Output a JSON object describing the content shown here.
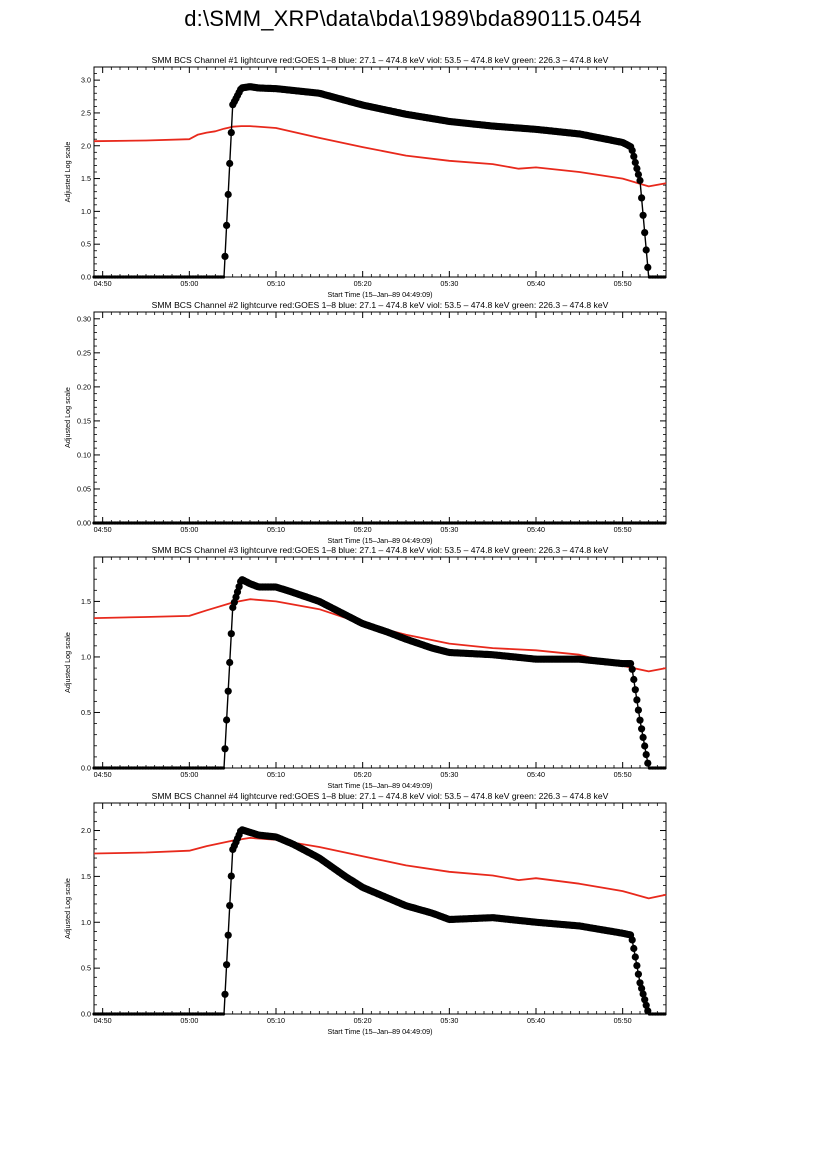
{
  "page": {
    "title": "d:\\SMM_XRP\\data\\bda\\1989\\bda890115.0454"
  },
  "colors": {
    "goes": "#e8291c",
    "bcs": "#000000",
    "axis": "#000000"
  },
  "chart_data": [
    {
      "type": "line",
      "title": "SMM BCS Channel #1 lightcurve  red:GOES 1–8  blue: 27.1 – 474.8 keV  viol: 53.5 – 474.8 keV  green: 226.3 – 474.8 keV",
      "xlabel": "Start Time (15–Jan–89 04:49:09)",
      "ylabel": "Adjusted Log scale",
      "xlim": [
        "04:49",
        "05:55"
      ],
      "ylim": [
        0,
        3.2
      ],
      "xticks": [
        "04:50",
        "05:00",
        "05:10",
        "05:20",
        "05:30",
        "05:40",
        "05:50"
      ],
      "yticks": [
        "0.0",
        "0.5",
        "1.0",
        "1.5",
        "2.0",
        "2.5",
        "3.0"
      ],
      "grid": false,
      "series": [
        {
          "color": "#e8291c",
          "x": [
            "04:49",
            "04:55",
            "05:00",
            "05:01",
            "05:02",
            "05:03",
            "05:04",
            "05:05",
            "05:06",
            "05:07",
            "05:10",
            "05:15",
            "05:20",
            "05:25",
            "05:30",
            "05:35",
            "05:38",
            "05:40",
            "05:45",
            "05:50",
            "05:53",
            "05:55"
          ],
          "y": [
            2.07,
            2.08,
            2.1,
            2.17,
            2.2,
            2.22,
            2.26,
            2.29,
            2.3,
            2.3,
            2.27,
            2.12,
            1.98,
            1.85,
            1.77,
            1.72,
            1.65,
            1.67,
            1.6,
            1.5,
            1.38,
            1.43
          ]
        },
        {
          "color": "#000000",
          "markers": true,
          "x": [
            "04:49",
            "04:55",
            "05:00",
            "05:04",
            "05:05",
            "05:06",
            "05:07",
            "05:08",
            "05:10",
            "05:15",
            "05:20",
            "05:25",
            "05:30",
            "05:35",
            "05:40",
            "05:45",
            "05:50",
            "05:51",
            "05:52",
            "05:53",
            "05:55"
          ],
          "y": [
            0,
            0,
            0,
            0,
            2.62,
            2.88,
            2.9,
            2.88,
            2.87,
            2.8,
            2.62,
            2.48,
            2.37,
            2.3,
            2.25,
            2.18,
            2.05,
            1.98,
            1.47,
            0,
            0
          ]
        }
      ]
    },
    {
      "type": "line",
      "title": "SMM BCS Channel #2 lightcurve  red:GOES 1–8  blue: 27.1 – 474.8 keV  viol: 53.5 – 474.8 keV  green: 226.3 – 474.8 keV",
      "xlabel": "Start Time (15–Jan–89 04:49:09)",
      "ylabel": "Adjusted Log scale",
      "xlim": [
        "04:49",
        "05:55"
      ],
      "ylim": [
        0,
        0.31
      ],
      "xticks": [
        "04:50",
        "05:00",
        "05:10",
        "05:20",
        "05:30",
        "05:40",
        "05:50"
      ],
      "yticks": [
        "0.00",
        "0.05",
        "0.10",
        "0.15",
        "0.20",
        "0.25",
        "0.30"
      ],
      "grid": false,
      "series": [
        {
          "color": "#000000",
          "markers": true,
          "x": [
            "04:49",
            "05:55"
          ],
          "y": [
            0,
            0
          ]
        }
      ]
    },
    {
      "type": "line",
      "title": "SMM BCS Channel #3 lightcurve  red:GOES 1–8  blue: 27.1 – 474.8 keV  viol: 53.5 – 474.8 keV  green: 226.3 – 474.8 keV",
      "xlabel": "Start Time (15–Jan–89 04:49:09)",
      "ylabel": "Adjusted Log scale",
      "xlim": [
        "04:49",
        "05:55"
      ],
      "ylim": [
        0,
        1.9
      ],
      "xticks": [
        "04:50",
        "05:00",
        "05:10",
        "05:20",
        "05:30",
        "05:40",
        "05:50"
      ],
      "yticks": [
        "0.0",
        "0.5",
        "1.0",
        "1.5"
      ],
      "grid": false,
      "series": [
        {
          "color": "#e8291c",
          "x": [
            "04:49",
            "04:55",
            "05:00",
            "05:02",
            "05:05",
            "05:07",
            "05:10",
            "05:15",
            "05:20",
            "05:25",
            "05:30",
            "05:35",
            "05:40",
            "05:45",
            "05:50",
            "05:53",
            "05:55"
          ],
          "y": [
            1.35,
            1.36,
            1.37,
            1.42,
            1.49,
            1.52,
            1.5,
            1.43,
            1.3,
            1.2,
            1.12,
            1.08,
            1.06,
            1.02,
            0.92,
            0.87,
            0.9
          ]
        },
        {
          "color": "#000000",
          "markers": true,
          "x": [
            "04:49",
            "04:55",
            "05:00",
            "05:04",
            "05:05",
            "05:06",
            "05:07",
            "05:08",
            "05:10",
            "05:12",
            "05:15",
            "05:18",
            "05:20",
            "05:23",
            "05:25",
            "05:28",
            "05:30",
            "05:35",
            "05:40",
            "05:45",
            "05:50",
            "05:51",
            "05:52",
            "05:53",
            "05:55"
          ],
          "y": [
            0,
            0,
            0,
            0,
            1.44,
            1.7,
            1.66,
            1.63,
            1.63,
            1.58,
            1.5,
            1.38,
            1.3,
            1.22,
            1.16,
            1.08,
            1.04,
            1.02,
            0.98,
            0.98,
            0.94,
            0.94,
            0.43,
            0,
            0
          ]
        }
      ]
    },
    {
      "type": "line",
      "title": "SMM BCS Channel #4 lightcurve  red:GOES 1–8  blue: 27.1 – 474.8 keV  viol: 53.5 – 474.8 keV  green: 226.3 – 474.8 keV",
      "xlabel": "Start Time (15–Jan–89 04:49:09)",
      "ylabel": "Adjusted Log scale",
      "xlim": [
        "04:49",
        "05:55"
      ],
      "ylim": [
        0,
        2.3
      ],
      "xticks": [
        "04:50",
        "05:00",
        "05:10",
        "05:20",
        "05:30",
        "05:40",
        "05:50"
      ],
      "yticks": [
        "0.0",
        "0.5",
        "1.0",
        "1.5",
        "2.0"
      ],
      "grid": false,
      "series": [
        {
          "color": "#e8291c",
          "x": [
            "04:49",
            "04:55",
            "05:00",
            "05:02",
            "05:05",
            "05:07",
            "05:10",
            "05:15",
            "05:20",
            "05:25",
            "05:30",
            "05:35",
            "05:38",
            "05:40",
            "05:45",
            "05:50",
            "05:53",
            "05:55"
          ],
          "y": [
            1.75,
            1.76,
            1.78,
            1.83,
            1.89,
            1.92,
            1.9,
            1.82,
            1.72,
            1.62,
            1.55,
            1.51,
            1.46,
            1.48,
            1.42,
            1.34,
            1.26,
            1.3
          ]
        },
        {
          "color": "#000000",
          "markers": true,
          "x": [
            "04:49",
            "04:55",
            "05:00",
            "05:04",
            "05:05",
            "05:06",
            "05:07",
            "05:08",
            "05:10",
            "05:12",
            "05:15",
            "05:18",
            "05:20",
            "05:22",
            "05:25",
            "05:28",
            "05:30",
            "05:35",
            "05:40",
            "05:45",
            "05:50",
            "05:51",
            "05:52",
            "05:53",
            "05:55"
          ],
          "y": [
            0,
            0,
            0,
            0,
            1.79,
            2.01,
            1.98,
            1.95,
            1.93,
            1.85,
            1.7,
            1.5,
            1.38,
            1.3,
            1.18,
            1.1,
            1.03,
            1.05,
            1.0,
            0.96,
            0.88,
            0.86,
            0.34,
            0,
            0
          ]
        }
      ]
    }
  ]
}
